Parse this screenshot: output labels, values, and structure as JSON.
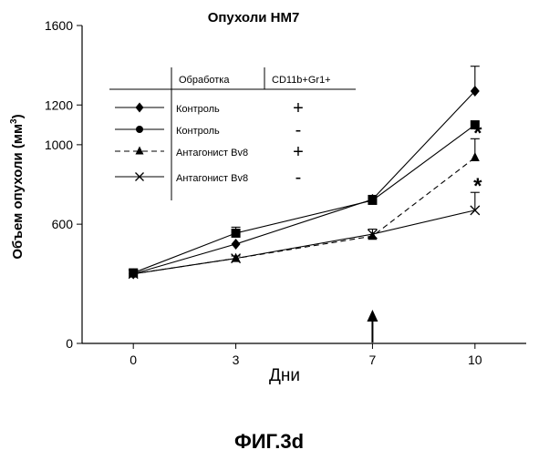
{
  "chart_data": {
    "type": "line",
    "title": "Опухоли HM7",
    "xlabel": "Дни",
    "ylabel": "Объем опухоли (мм3)",
    "ylabel_main": "Объем опухоли (мм",
    "ylabel_sup": "3",
    "ylabel_close": ")",
    "x": [
      0,
      3,
      7,
      10
    ],
    "xlim": [
      -1.5,
      11.5
    ],
    "ylim": [
      0,
      1600
    ],
    "x_ticks": [
      "0",
      "3",
      "7",
      "10"
    ],
    "y_ticks": [
      "0",
      "600",
      "1000",
      "1200",
      "1600"
    ],
    "y_tick_values": [
      0,
      600,
      1000,
      1200,
      1600
    ],
    "grid": false,
    "legend_position": "top-left",
    "legend_headers": [
      "Обработка",
      "CD11b+Gr1+"
    ],
    "series": [
      {
        "name": "Контроль",
        "values": [
          350,
          500,
          725,
          1270
        ],
        "errors": [
          0,
          0,
          0,
          125
        ],
        "marker": "diamond",
        "dash": false,
        "cd11b": "+"
      },
      {
        "name": "Контроль",
        "values": [
          355,
          555,
          720,
          1100
        ],
        "errors": [
          0,
          30,
          25,
          0
        ],
        "marker": "square",
        "legend_marker": "circle",
        "dash": false,
        "cd11b": "-"
      },
      {
        "name": "Антагонист Bv8",
        "values": [
          350,
          428,
          540,
          935
        ],
        "errors": [
          0,
          0,
          0,
          95
        ],
        "marker": "triangle",
        "dash": true,
        "cd11b": "+"
      },
      {
        "name": "Антагонист Bv8",
        "values": [
          350,
          428,
          550,
          670
        ],
        "errors": [
          0,
          12,
          25,
          90
        ],
        "marker": "x",
        "dash": false,
        "cd11b": "-"
      }
    ],
    "annotations": [
      {
        "text": "*",
        "x": 10,
        "y": 1050
      },
      {
        "text": "*",
        "x": 10,
        "y": 785
      },
      {
        "text": "↑",
        "x": 7,
        "y": 180
      }
    ]
  },
  "caption": "ФИГ.3d"
}
